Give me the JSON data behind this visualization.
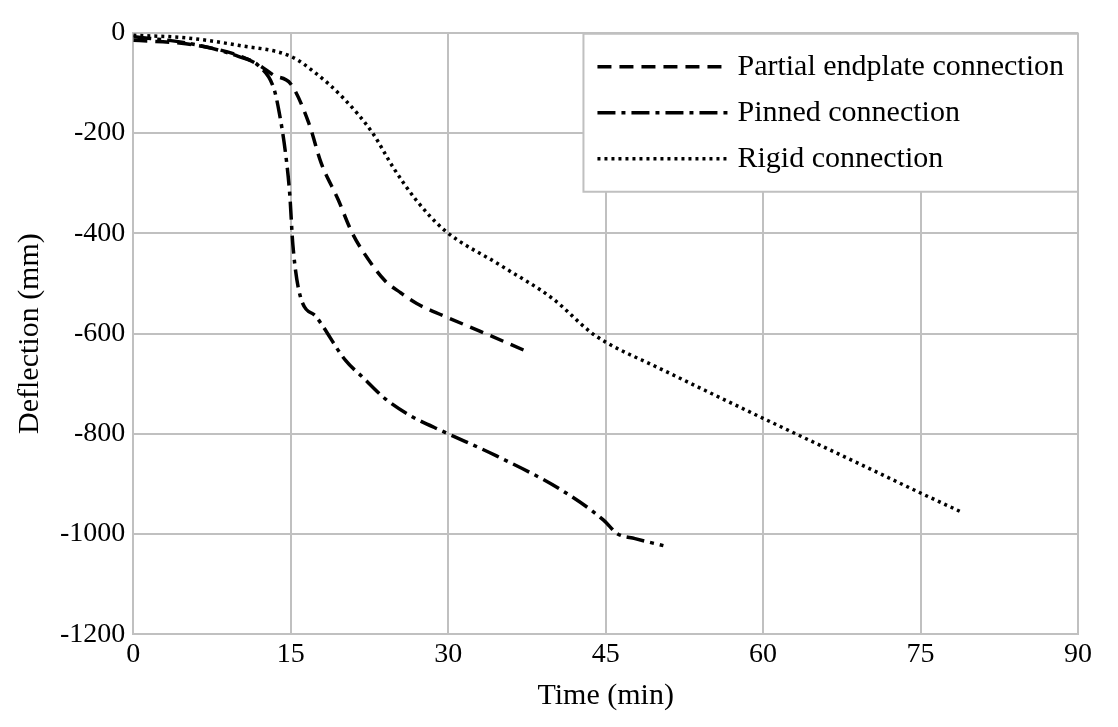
{
  "chart_data": {
    "type": "line",
    "xlabel": "Time (min)",
    "ylabel": "Deflection (mm)",
    "xlim": [
      0,
      90
    ],
    "xticks": [
      0,
      15,
      30,
      45,
      60,
      75,
      90
    ],
    "ylim": [
      -1200,
      0
    ],
    "yticks": [
      -1200,
      -1000,
      -800,
      -600,
      -400,
      -200,
      0
    ],
    "grid": true,
    "legend": "top right",
    "marker": "none",
    "series": [
      {
        "name": "Partial endplate connection",
        "color": "#000000",
        "line_style": "dashed",
        "x": [
          0,
          5,
          10,
          12,
          13.4,
          15,
          16.7,
          17.9,
          19.5,
          20.8,
          22,
          24,
          25.5,
          27,
          29.5,
          33,
          37.2
        ],
        "values": [
          -15,
          -22,
          -45,
          -65,
          -85,
          -102,
          -179,
          -260,
          -332,
          -397,
          -440,
          -495,
          -519,
          -540,
          -564,
          -595,
          -633
        ]
      },
      {
        "name": "Pinned connection",
        "color": "#000000",
        "line_style": "dashdot",
        "x": [
          0,
          5,
          10,
          12,
          13.4,
          13.9,
          14.5,
          14.9,
          15.2,
          15.9,
          17.4,
          20.2,
          21.9,
          24,
          26.5,
          29.6,
          34.6,
          40.7,
          44.8,
          46.1,
          47.8,
          50.5
        ],
        "values": [
          -8,
          -20,
          -47,
          -67,
          -112,
          -159,
          -240,
          -321,
          -423,
          -525,
          -566,
          -653,
          -688,
          -730,
          -765,
          -796,
          -844,
          -911,
          -972,
          -999,
          -1009,
          -1023
        ]
      },
      {
        "name": "Rigid connection",
        "color": "#000000",
        "line_style": "dotted",
        "x": [
          0,
          5,
          10,
          15,
          17.4,
          20,
          22.8,
          24.8,
          27,
          29.6,
          35,
          40,
          43.5,
          45,
          50,
          60,
          70,
          75,
          78.8
        ],
        "values": [
          -5,
          -10,
          -25,
          -47,
          -81,
          -130,
          -200,
          -270,
          -335,
          -393,
          -464,
          -531,
          -596,
          -617,
          -668,
          -769,
          -868,
          -918,
          -955
        ]
      }
    ]
  }
}
